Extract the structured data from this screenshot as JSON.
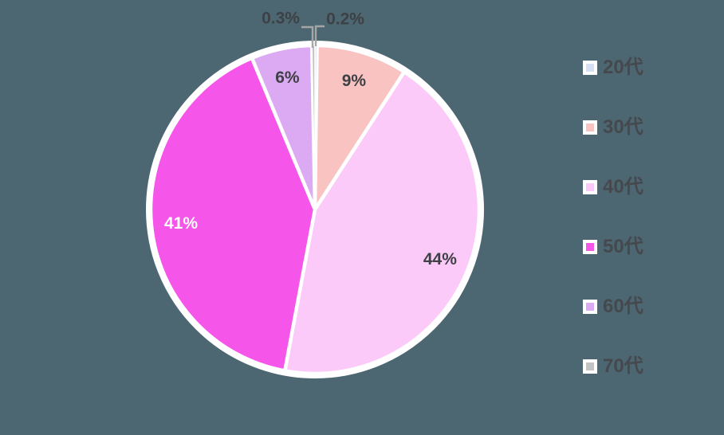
{
  "background_color": "#4c6771",
  "chart_data": {
    "type": "pie",
    "categories": [
      "20代",
      "30代",
      "40代",
      "50代",
      "60代",
      "70代"
    ],
    "values": [
      0.2,
      9,
      44,
      41,
      6,
      0.3
    ],
    "slice_labels": [
      "0.2%",
      "9%",
      "44%",
      "41%",
      "6%",
      "0.3%"
    ],
    "colors": [
      "#d8dff2",
      "#f8c3c1",
      "#fccaf8",
      "#f655e9",
      "#dcaaf2",
      "#c3c3c3"
    ],
    "label_text_colors": [
      "#3d4045",
      "#3d4045",
      "#3d4045",
      "#ffffff",
      "#3d4045",
      "#3d4045"
    ],
    "label_placement": [
      "outside",
      "inside",
      "inside",
      "inside",
      "inside",
      "outside"
    ],
    "start_angle_deg": 0,
    "direction": "clockwise",
    "slice_border_color": "#ffffff",
    "leader_line_color": "#a6a6a6",
    "legend_position": "right",
    "legend_text_color": "#45484d"
  }
}
